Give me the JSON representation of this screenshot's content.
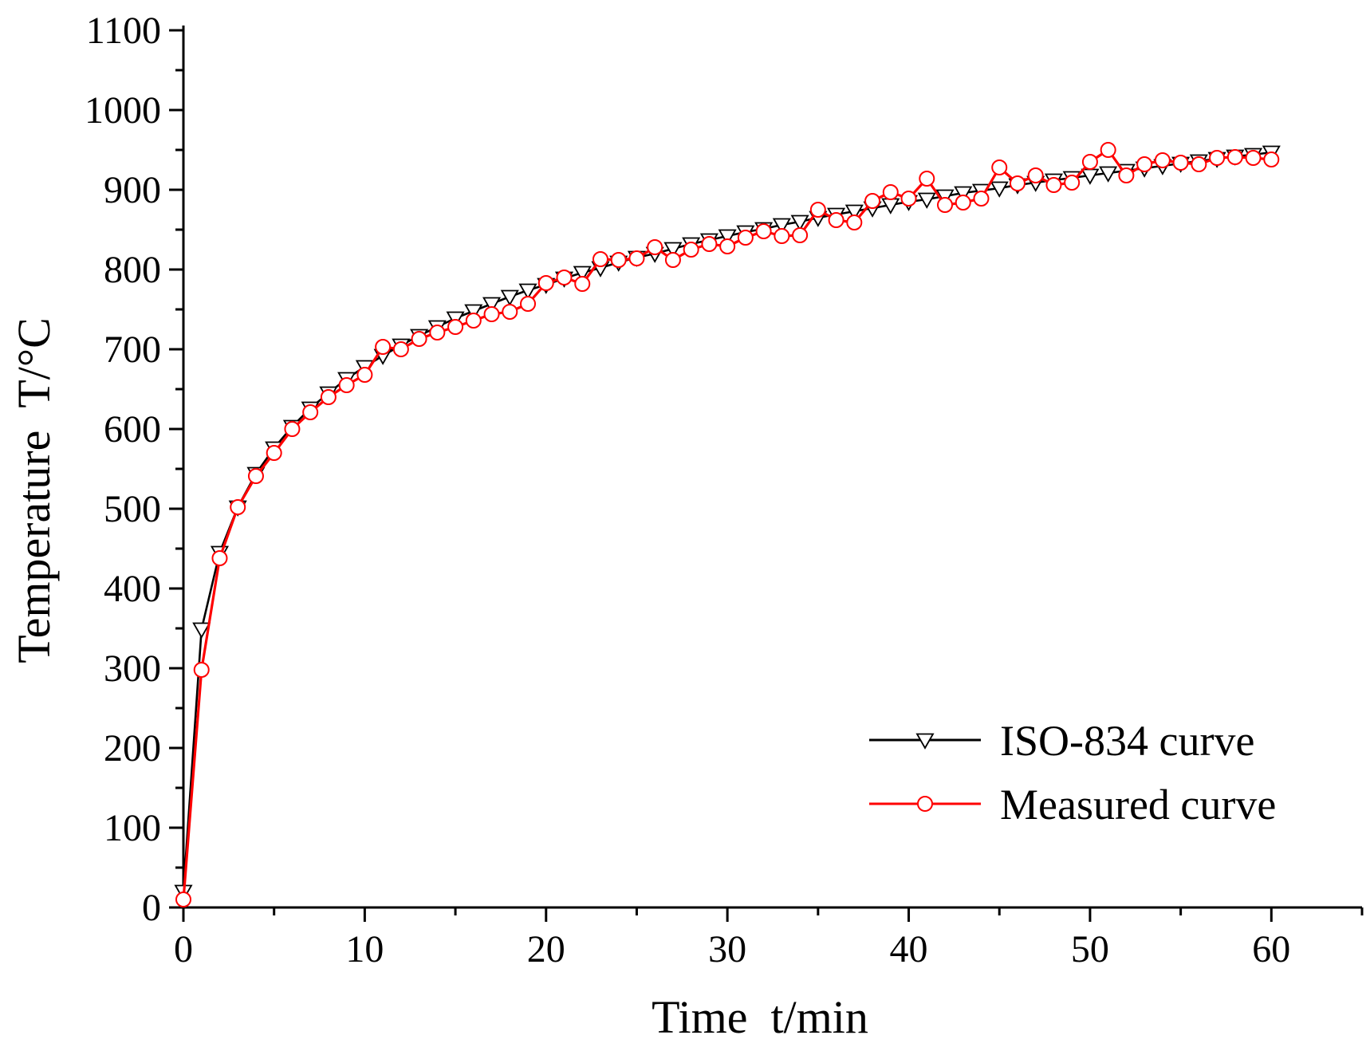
{
  "chart_data": {
    "type": "line",
    "title": "",
    "xlabel": "Time  t/min",
    "ylabel": "Temperature  T/°C",
    "xlim": [
      0,
      65
    ],
    "ylim": [
      0,
      1100
    ],
    "xticks": [
      0,
      10,
      20,
      30,
      40,
      50,
      60
    ],
    "yticks": [
      0,
      100,
      200,
      300,
      400,
      500,
      600,
      700,
      800,
      900,
      1000,
      1100
    ],
    "x_minor_step": 5,
    "y_minor_step": 50,
    "grid": false,
    "legend_position": "bottom-right",
    "series": [
      {
        "name": "ISO-834 curve",
        "color": "#000000",
        "marker": "triangle-down",
        "x": [
          0,
          1,
          2,
          3,
          4,
          5,
          6,
          7,
          8,
          9,
          10,
          11,
          12,
          13,
          14,
          15,
          16,
          17,
          18,
          19,
          20,
          21,
          22,
          23,
          24,
          25,
          26,
          27,
          28,
          29,
          30,
          31,
          32,
          33,
          34,
          35,
          36,
          37,
          38,
          39,
          40,
          41,
          42,
          43,
          44,
          45,
          46,
          47,
          48,
          49,
          50,
          51,
          52,
          53,
          54,
          55,
          56,
          57,
          58,
          59,
          60
        ],
        "values": [
          20,
          349,
          445,
          502,
          544,
          576,
          603,
          626,
          645,
          663,
          678,
          692,
          705,
          717,
          728,
          739,
          748,
          757,
          766,
          774,
          781,
          789,
          796,
          802,
          809,
          815,
          820,
          826,
          832,
          837,
          842,
          847,
          851,
          856,
          860,
          865,
          869,
          873,
          877,
          881,
          885,
          888,
          892,
          896,
          899,
          902,
          906,
          909,
          912,
          915,
          918,
          921,
          924,
          927,
          930,
          933,
          936,
          939,
          942,
          944,
          947
        ]
      },
      {
        "name": "Measured curve",
        "color": "#ff0000",
        "marker": "circle",
        "x": [
          0,
          1,
          2,
          3,
          4,
          5,
          6,
          7,
          8,
          9,
          10,
          11,
          12,
          13,
          14,
          15,
          16,
          17,
          18,
          19,
          20,
          21,
          22,
          23,
          24,
          25,
          26,
          27,
          28,
          29,
          30,
          31,
          32,
          33,
          34,
          35,
          36,
          37,
          38,
          39,
          40,
          41,
          42,
          43,
          44,
          45,
          46,
          47,
          48,
          49,
          50,
          51,
          52,
          53,
          54,
          55,
          56,
          57,
          58,
          59,
          60
        ],
        "values": [
          10,
          298,
          438,
          502,
          541,
          570,
          600,
          621,
          640,
          655,
          668,
          703,
          700,
          713,
          721,
          728,
          736,
          744,
          747,
          757,
          783,
          790,
          782,
          813,
          812,
          814,
          828,
          812,
          825,
          832,
          829,
          840,
          848,
          842,
          843,
          875,
          862,
          859,
          886,
          897,
          889,
          914,
          881,
          884,
          889,
          928,
          908,
          918,
          906,
          909,
          935,
          950,
          918,
          932,
          937,
          934,
          932,
          940,
          941,
          940,
          938
        ]
      }
    ]
  }
}
